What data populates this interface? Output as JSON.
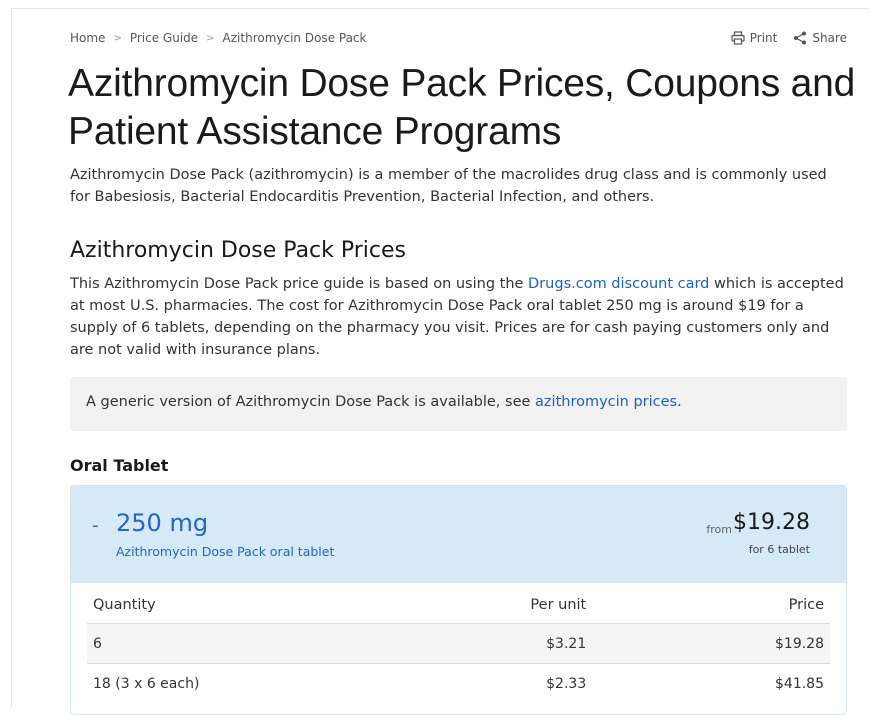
{
  "breadcrumb": {
    "items": [
      "Home",
      "Price Guide",
      "Azithromycin Dose Pack"
    ],
    "separator": ">"
  },
  "actions": {
    "print_label": "Print",
    "share_label": "Share"
  },
  "page": {
    "title": "Azithromycin Dose Pack Prices, Coupons and Patient Assistance Programs",
    "intro": "Azithromycin Dose Pack (azithromycin) is a member of the macrolides drug class and is commonly used for Babesiosis, Bacterial Endocarditis Prevention, Bacterial Infection, and others."
  },
  "prices_section": {
    "heading": "Azithromycin Dose Pack Prices",
    "text_before_link": "This Azithromycin Dose Pack price guide is based on using the ",
    "link_text": "Drugs.com discount card",
    "text_after_link": " which is accepted at most U.S. pharmacies. The cost for Azithromycin Dose Pack oral tablet 250 mg is around $19 for a supply of 6 tablets, depending on the pharmacy you visit. Prices are for cash paying customers only and are not valid with insurance plans."
  },
  "notice": {
    "text": "A generic version of Azithromycin Dose Pack is available, see ",
    "link_text": "azithromycin prices",
    "suffix": "."
  },
  "dosage_form": {
    "heading": "Oral Tablet",
    "card": {
      "toggle": "-",
      "strength": "250 mg",
      "form_label": "Azithromycin Dose Pack oral tablet",
      "from_label": "from",
      "price": "$19.28",
      "supply": "for 6 tablet",
      "table": {
        "headers": {
          "quantity": "Quantity",
          "per_unit": "Per unit",
          "price": "Price"
        },
        "rows": [
          {
            "quantity": "6",
            "per_unit": "$3.21",
            "price": "$19.28"
          },
          {
            "quantity": "18 (3 x 6 each)",
            "per_unit": "$2.33",
            "price": "$41.85"
          }
        ]
      }
    }
  },
  "colors": {
    "link": "#1f5fbf",
    "card_header_bg": "#d6e9f6",
    "notice_bg": "#f1f1f1"
  }
}
